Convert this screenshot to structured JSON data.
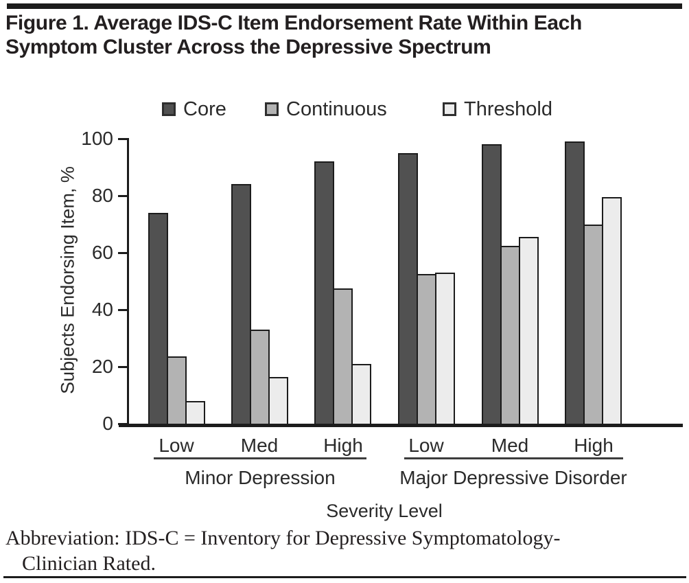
{
  "header": {
    "title_line1": "Figure 1. Average IDS-C Item Endorsement Rate Within Each",
    "title_line2": "Symptom Cluster Across the Depressive Spectrum"
  },
  "legend": {
    "items": [
      {
        "label": "Core",
        "color": "#515151"
      },
      {
        "label": "Continuous",
        "color": "#b3b3b3"
      },
      {
        "label": "Threshold",
        "color": "#ececec"
      }
    ]
  },
  "y_axis": {
    "title": "Subjects Endorsing Item, %",
    "ticks": [
      0,
      20,
      40,
      60,
      80,
      100
    ]
  },
  "x_axis": {
    "title": "Severity Level",
    "severity_labels": [
      "Low",
      "Med",
      "High",
      "Low",
      "Med",
      "High"
    ],
    "cluster_labels": [
      "Minor Depression",
      "Major Depressive Disorder"
    ]
  },
  "chart_data": {
    "type": "bar",
    "title": "Average IDS-C Item Endorsement Rate Within Each Symptom Cluster Across the Depressive Spectrum",
    "categories": [
      "Low",
      "Med",
      "High",
      "Low",
      "Med",
      "High"
    ],
    "group_sections": [
      {
        "label": "Minor Depression",
        "categories": [
          "Low",
          "Med",
          "High"
        ]
      },
      {
        "label": "Major Depressive Disorder",
        "categories": [
          "Low",
          "Med",
          "High"
        ]
      }
    ],
    "series": [
      {
        "name": "Core",
        "color": "#515151",
        "values": [
          74,
          84,
          92,
          95,
          98,
          99
        ]
      },
      {
        "name": "Continuous",
        "color": "#b3b3b3",
        "values": [
          23.5,
          33,
          47.5,
          52.5,
          62.5,
          70
        ]
      },
      {
        "name": "Threshold",
        "color": "#ececec",
        "values": [
          8,
          16.5,
          21,
          53,
          65.5,
          79.5
        ]
      }
    ],
    "xlabel": "Severity Level",
    "ylabel": "Subjects Endorsing Item, %",
    "ylim": [
      0,
      100
    ],
    "grid": false,
    "legend_position": "top"
  },
  "footnote": {
    "line1": "Abbreviation: IDS-C = Inventory for Depressive Symptomatology-",
    "line2": "Clinician Rated."
  }
}
